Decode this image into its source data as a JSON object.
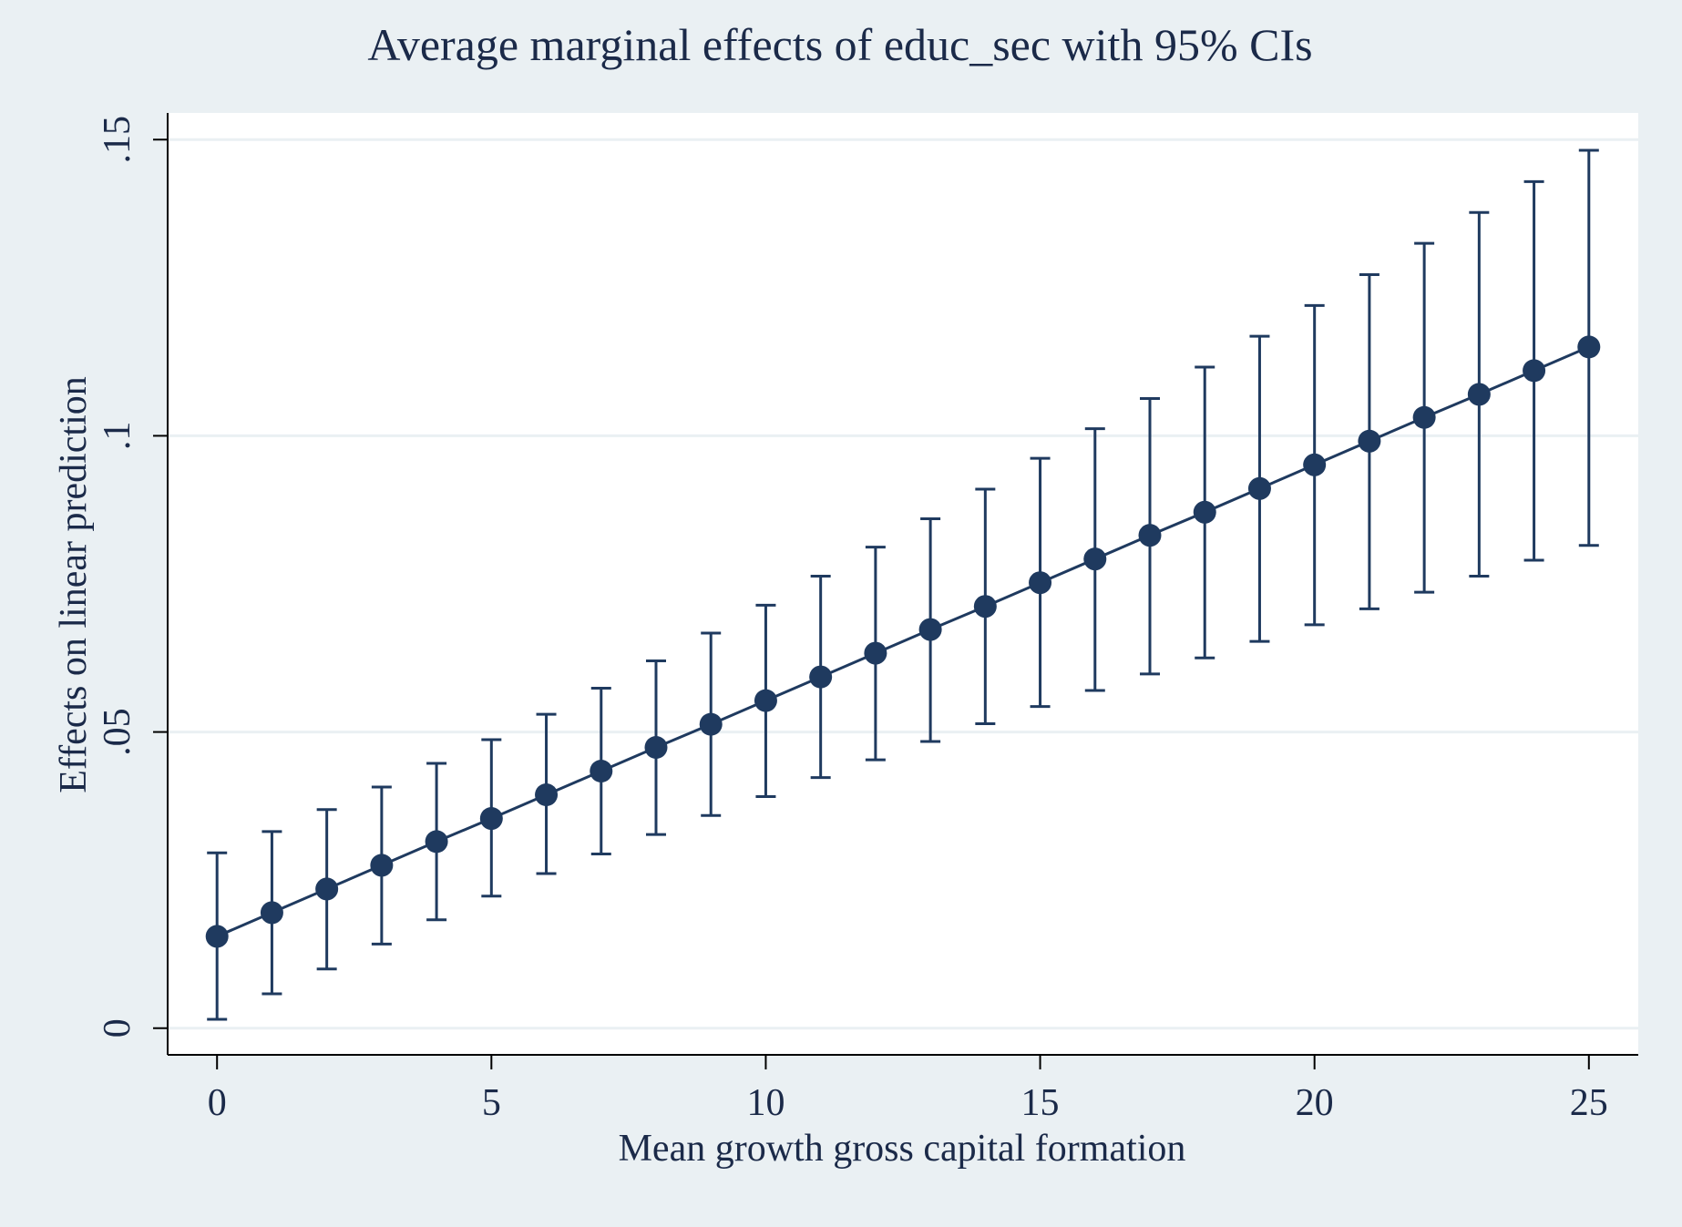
{
  "chart_data": {
    "type": "scatter",
    "title": "Average marginal effects of educ_sec with 95% CIs",
    "xlabel": "Mean growth gross capital formation",
    "ylabel": "Effects on linear prediction",
    "xlim": [
      -0.9,
      25.9
    ],
    "ylim": [
      -0.0045,
      0.1545
    ],
    "xticks": [
      0,
      5,
      10,
      15,
      20,
      25
    ],
    "xtick_labels": [
      "0",
      "5",
      "10",
      "15",
      "20",
      "25"
    ],
    "yticks": [
      0,
      0.05,
      0.1,
      0.15
    ],
    "ytick_labels": [
      "0",
      ".05",
      ".1",
      ".15"
    ],
    "grid": true,
    "connected": true,
    "colors": {
      "marker": "#1f3a5f",
      "line": "#1f3a5f",
      "grid": "#eaf0f3",
      "plot_bg": "#ffffff",
      "page_bg": "#eaf0f3"
    },
    "series": [
      {
        "x": [
          0,
          1,
          2,
          3,
          4,
          5,
          6,
          7,
          8,
          9,
          10,
          11,
          12,
          13,
          14,
          15,
          16,
          17,
          18,
          19,
          20,
          21,
          22,
          23,
          24,
          25
        ],
        "y": [
          0.0155,
          0.0195,
          0.0235,
          0.0275,
          0.0315,
          0.0354,
          0.0394,
          0.0434,
          0.0474,
          0.0513,
          0.0553,
          0.0593,
          0.0633,
          0.0673,
          0.0712,
          0.0752,
          0.0792,
          0.0832,
          0.0871,
          0.0911,
          0.0951,
          0.0991,
          0.1031,
          0.107,
          0.111,
          0.115
        ],
        "lower": [
          0.0015,
          0.0058,
          0.01,
          0.0142,
          0.0183,
          0.0223,
          0.0261,
          0.0294,
          0.0327,
          0.0359,
          0.0391,
          0.0423,
          0.0453,
          0.0484,
          0.0514,
          0.0543,
          0.057,
          0.0598,
          0.0625,
          0.0653,
          0.0681,
          0.0708,
          0.0736,
          0.0763,
          0.079,
          0.0815
        ],
        "upper": [
          0.0296,
          0.0332,
          0.0369,
          0.0407,
          0.0447,
          0.0487,
          0.053,
          0.0574,
          0.062,
          0.0667,
          0.0714,
          0.0763,
          0.0812,
          0.086,
          0.091,
          0.0962,
          0.1012,
          0.1063,
          0.1116,
          0.1168,
          0.122,
          0.1272,
          0.1325,
          0.1377,
          0.1429,
          0.1482
        ]
      }
    ]
  }
}
